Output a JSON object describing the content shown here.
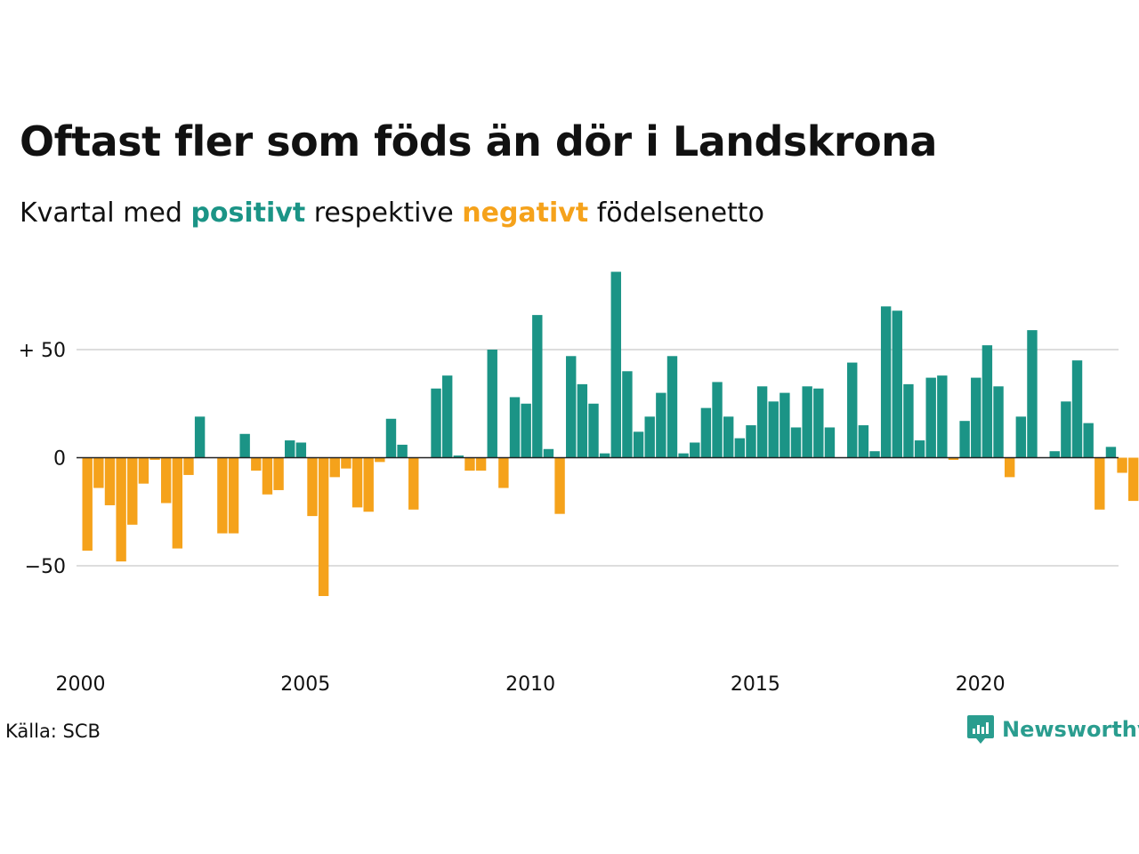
{
  "title": "Oftast fler som föds än dör i Landskrona",
  "subtitle": {
    "prefix": "Kvartal med",
    "positive_word": "positivt",
    "middle": "respektive",
    "negative_word": "negativt",
    "suffix": "födelsenetto"
  },
  "source": "Källa: SCB",
  "logo_text": "Newsworthy",
  "logo_icon": "newsworthy-chart-bubble-icon",
  "colors": {
    "positive": "#1b9486",
    "negative": "#f5a21b",
    "grid": "#dddddd",
    "text": "#111111",
    "brand": "#2a9d8f"
  },
  "chart_data": {
    "type": "bar",
    "title": "Oftast fler som föds än dör i Landskrona",
    "subtitle": "Kvartal med positivt respektive negativt födelsenetto",
    "ylim": [
      -75,
      90
    ],
    "yticks": [
      {
        "value": 50,
        "label": "+ 50"
      },
      {
        "value": 0,
        "label": "0"
      },
      {
        "value": -50,
        "label": "−50"
      }
    ],
    "xticks": [
      {
        "value": 2000,
        "label": "2000"
      },
      {
        "value": 2005,
        "label": "2005"
      },
      {
        "value": 2010,
        "label": "2010"
      },
      {
        "value": 2015,
        "label": "2015"
      },
      {
        "value": 2020,
        "label": "2020"
      }
    ],
    "grid": true,
    "categories": [
      "2000 Q1",
      "2000 Q2",
      "2000 Q3",
      "2000 Q4",
      "2001 Q1",
      "2001 Q2",
      "2001 Q3",
      "2001 Q4",
      "2002 Q1",
      "2002 Q2",
      "2002 Q3",
      "2002 Q4",
      "2003 Q1",
      "2003 Q2",
      "2003 Q3",
      "2003 Q4",
      "2004 Q1",
      "2004 Q2",
      "2004 Q3",
      "2004 Q4",
      "2005 Q1",
      "2005 Q2",
      "2005 Q3",
      "2005 Q4",
      "2006 Q1",
      "2006 Q2",
      "2006 Q3",
      "2006 Q4",
      "2007 Q1",
      "2007 Q2",
      "2007 Q3",
      "2007 Q4",
      "2008 Q1",
      "2008 Q2",
      "2008 Q3",
      "2008 Q4",
      "2009 Q1",
      "2009 Q2",
      "2009 Q3",
      "2009 Q4",
      "2010 Q1",
      "2010 Q2",
      "2010 Q3",
      "2010 Q4",
      "2011 Q1",
      "2011 Q2",
      "2011 Q3",
      "2011 Q4",
      "2012 Q1",
      "2012 Q2",
      "2012 Q3",
      "2012 Q4",
      "2013 Q1",
      "2013 Q2",
      "2013 Q3",
      "2013 Q4",
      "2014 Q1",
      "2014 Q2",
      "2014 Q3",
      "2014 Q4",
      "2015 Q1",
      "2015 Q2",
      "2015 Q3",
      "2015 Q4",
      "2016 Q1",
      "2016 Q2",
      "2016 Q3",
      "2016 Q4",
      "2017 Q1",
      "2017 Q2",
      "2017 Q3",
      "2017 Q4",
      "2018 Q1",
      "2018 Q2",
      "2018 Q3",
      "2018 Q4",
      "2019 Q1",
      "2019 Q2",
      "2019 Q3",
      "2019 Q4",
      "2020 Q1",
      "2020 Q2",
      "2020 Q3",
      "2020 Q4",
      "2021 Q1",
      "2021 Q2",
      "2021 Q3",
      "2021 Q4",
      "2022 Q1",
      "2022 Q2",
      "2022 Q3",
      "2022 Q4",
      "2023 Q1",
      "2023 Q2",
      "2023 Q3"
    ],
    "values": [
      -43,
      -14,
      -22,
      -48,
      -31,
      -12,
      -1,
      -21,
      -42,
      -8,
      19,
      0,
      -35,
      -35,
      11,
      -6,
      -17,
      -15,
      8,
      7,
      -27,
      -64,
      -9,
      -5,
      -23,
      -25,
      -2,
      18,
      6,
      -24,
      0,
      32,
      38,
      1,
      -6,
      -6,
      50,
      -14,
      28,
      25,
      66,
      4,
      -26,
      47,
      34,
      25,
      2,
      86,
      40,
      12,
      19,
      30,
      47,
      2,
      7,
      23,
      35,
      19,
      9,
      15,
      33,
      26,
      30,
      14,
      33,
      32,
      14,
      0,
      44,
      15,
      3,
      70,
      68,
      34,
      8,
      37,
      38,
      -1,
      17,
      37,
      52,
      33,
      -9,
      19,
      59,
      0,
      3,
      26,
      45,
      16,
      -24,
      5,
      -7,
      -20,
      0
    ]
  }
}
